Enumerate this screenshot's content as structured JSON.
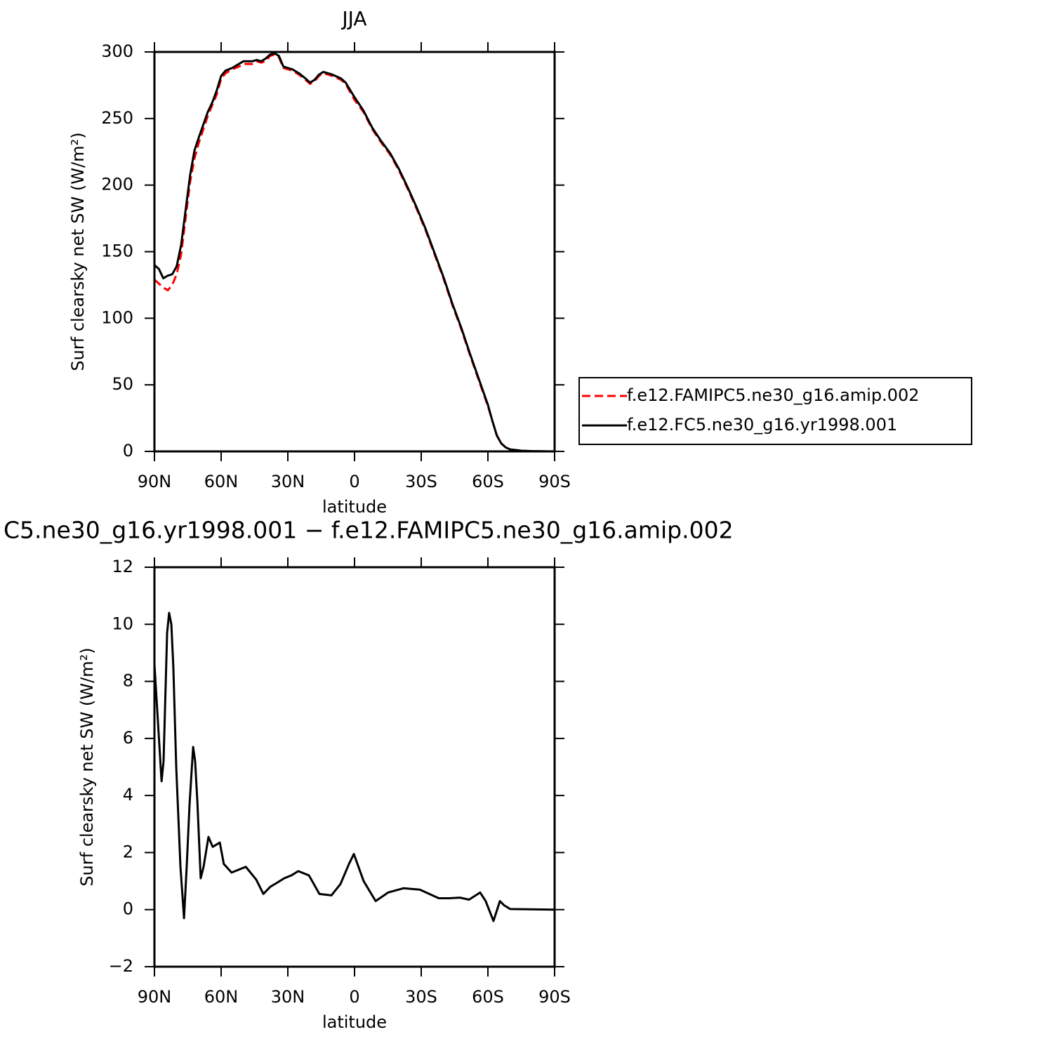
{
  "chart_data": [
    {
      "type": "line",
      "title": "JJA",
      "xlabel": "latitude",
      "ylabel": "Surf clearsky net SW (W/m²)",
      "xlim": [
        90,
        -90
      ],
      "xticks": [
        {
          "value": 90,
          "label": "90N"
        },
        {
          "value": 60,
          "label": "60N"
        },
        {
          "value": 30,
          "label": "30N"
        },
        0,
        {
          "value": -30,
          "label": "30S"
        },
        {
          "value": -60,
          "label": "60S"
        },
        {
          "value": -90,
          "label": "90S"
        }
      ],
      "ylim": [
        0,
        300
      ],
      "yticks": [
        0,
        50,
        100,
        150,
        200,
        250,
        300
      ],
      "legend": "right",
      "x": [
        90,
        88,
        86,
        84,
        82,
        80,
        78,
        76,
        74,
        72,
        70,
        66,
        64,
        62,
        60,
        58,
        55,
        52,
        50,
        46,
        44,
        42,
        40,
        38,
        36,
        34,
        32,
        30,
        28,
        25,
        22,
        20,
        18,
        16,
        14,
        12,
        10,
        6,
        4,
        0,
        -4,
        -8,
        -12,
        -16,
        -20,
        -24,
        -28,
        -32,
        -36,
        -40,
        -44,
        -48,
        -52,
        -56,
        -60,
        -62,
        -64,
        -66,
        -68,
        -70,
        -75,
        -80,
        -90
      ],
      "series": [
        {
          "name": "f.e12.FAMIPC5.ne30_g16.amip.002",
          "color": "#ff0000",
          "line_style": "dashed",
          "values": [
            129,
            126,
            123,
            121,
            125,
            133,
            148,
            175,
            202,
            220,
            232,
            252,
            260,
            268,
            280,
            284,
            287,
            289,
            291,
            291,
            293,
            292,
            293,
            297,
            298,
            296,
            288,
            287,
            286,
            283,
            279,
            276,
            278,
            282,
            284,
            283,
            282,
            279,
            276,
            264,
            255,
            242,
            232,
            223,
            211,
            197,
            182,
            166,
            148,
            130,
            110,
            92,
            72,
            53,
            34,
            23,
            12,
            6,
            3,
            1.5,
            0.5,
            0.2,
            0
          ]
        },
        {
          "name": "f.e12.FC5.ne30_g16.yr1998.001",
          "color": "#000000",
          "line_style": "solid",
          "values": [
            140,
            137,
            130,
            132,
            133,
            139,
            155,
            181,
            207,
            226,
            236,
            255,
            262,
            271,
            282,
            286,
            288,
            291,
            293,
            293,
            294,
            293,
            295,
            298,
            299,
            297,
            289,
            288,
            287,
            284,
            280,
            277,
            279,
            283,
            285,
            284,
            283,
            280,
            277,
            266,
            256,
            243,
            233,
            224,
            212,
            198,
            183,
            167,
            149,
            131,
            111,
            93,
            73,
            54,
            35,
            23,
            12,
            6,
            3,
            1.5,
            0.5,
            0.2,
            0
          ]
        }
      ]
    },
    {
      "type": "line",
      "title": "C5.ne30_g16.yr1998.001 − f.e12.FAMIPC5.ne30_g16.amip.002",
      "xlabel": "latitude",
      "ylabel": "Surf clearsky net SW (W/m²)",
      "xlim": [
        90,
        -90
      ],
      "xticks": [
        {
          "value": 90,
          "label": "90N"
        },
        {
          "value": 60,
          "label": "60N"
        },
        {
          "value": 30,
          "label": "30N"
        },
        0,
        {
          "value": -30,
          "label": "30S"
        },
        {
          "value": -60,
          "label": "60S"
        },
        {
          "value": -90,
          "label": "90S"
        }
      ],
      "ylim": [
        -2,
        12
      ],
      "yticks": [
        {
          "value": -2,
          "label": "−2"
        },
        0,
        2,
        4,
        6,
        8,
        10,
        12
      ],
      "x": [
        90,
        86.8,
        85.9,
        84.3,
        83.4,
        82.4,
        81.5,
        80.2,
        78.3,
        76.7,
        75.5,
        74.2,
        72.6,
        71.7,
        70.7,
        69.2,
        67.9,
        65.7,
        63.8,
        60.6,
        58.8,
        55.3,
        52.1,
        48.9,
        44.2,
        41,
        37.9,
        34.7,
        31.6,
        28.4,
        25.3,
        20.5,
        15.8,
        10.4,
        6.3,
        2.5,
        0.3,
        -4.1,
        -9.5,
        -15.1,
        -22.1,
        -29.4,
        -37.9,
        -42.6,
        -47.4,
        -51.5,
        -56.5,
        -59,
        -62.5,
        -65.4,
        -67.3,
        -70.1,
        -90
      ],
      "series": [
        {
          "color": "#000000",
          "line_style": "solid",
          "values": [
            8.6,
            4.5,
            5.2,
            9.7,
            10.4,
            10,
            8.5,
            5,
            1.5,
            -0.3,
            1.5,
            3.7,
            5.7,
            5.2,
            3.8,
            1.1,
            1.5,
            2.55,
            2.2,
            2.35,
            1.6,
            1.3,
            1.4,
            1.5,
            1.05,
            0.55,
            0.8,
            0.95,
            1.1,
            1.2,
            1.35,
            1.2,
            0.55,
            0.5,
            0.9,
            1.6,
            1.95,
            1.0,
            0.3,
            0.6,
            0.75,
            0.7,
            0.4,
            0.4,
            0.42,
            0.35,
            0.6,
            0.3,
            -0.4,
            0.3,
            0.15,
            0.02,
            0
          ]
        }
      ]
    }
  ]
}
